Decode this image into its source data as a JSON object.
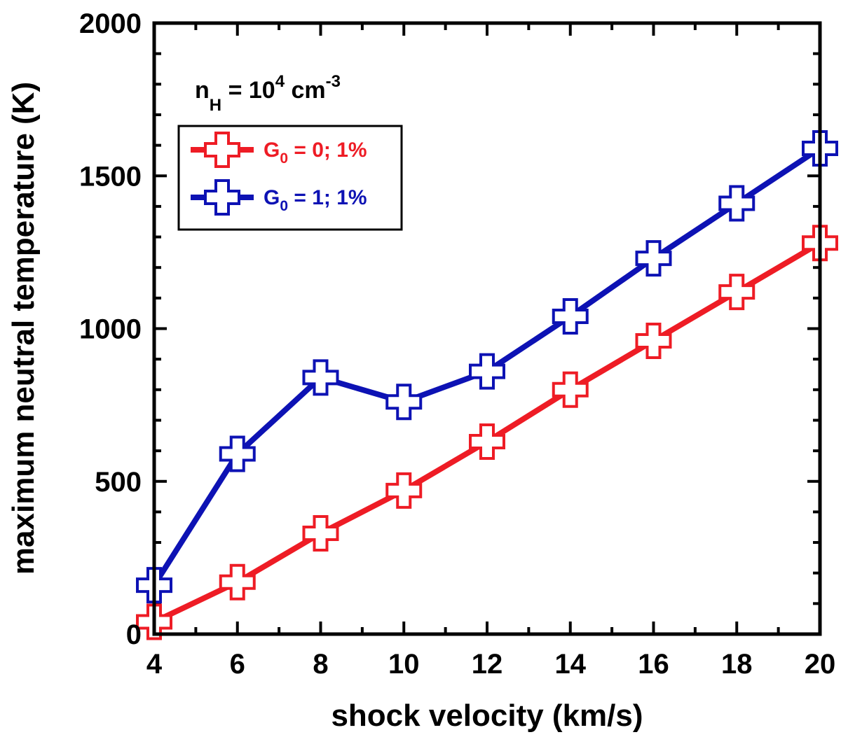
{
  "chart_data": {
    "type": "line",
    "xlabel": "shock velocity (km/s)",
    "ylabel": "maximum neutral temperature (K)",
    "xlim": [
      4,
      20
    ],
    "ylim": [
      0,
      2000
    ],
    "xticks": [
      4,
      6,
      8,
      10,
      12,
      14,
      16,
      18,
      20
    ],
    "yticks": [
      0,
      500,
      1000,
      1500,
      2000
    ],
    "grid": false,
    "legend_position": "top-left",
    "annotation": {
      "base": "n",
      "sub": "H",
      "mid": " = 10",
      "sup": "4",
      "unit": " cm",
      "unit_sup": "-3"
    },
    "series": [
      {
        "name": "G0 = 0; 1%",
        "legend": {
          "base": "G",
          "sub": "0",
          "rest": " = 0; 1%"
        },
        "color": "#ee1c25",
        "marker": "open-cross",
        "x": [
          4,
          6,
          8,
          10,
          12,
          14,
          16,
          18,
          20
        ],
        "y": [
          40,
          170,
          330,
          470,
          630,
          800,
          960,
          1120,
          1280
        ]
      },
      {
        "name": "G0 = 1; 1%",
        "legend": {
          "base": "G",
          "sub": "0",
          "rest": " = 1; 1%"
        },
        "color": "#0d12b4",
        "marker": "open-cross",
        "x": [
          4,
          6,
          8,
          10,
          12,
          14,
          16,
          18,
          20
        ],
        "y": [
          160,
          590,
          840,
          760,
          860,
          1040,
          1230,
          1410,
          1590
        ]
      }
    ]
  }
}
